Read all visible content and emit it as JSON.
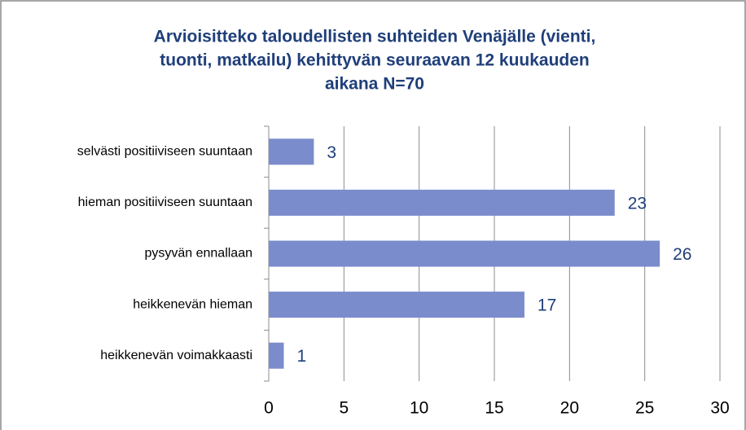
{
  "chart_data": {
    "type": "bar",
    "orientation": "horizontal",
    "title": [
      "Arvioisitteko taloudellisten suhteiden Venäjälle (vienti,",
      "tuonti, matkailu) kehittyvän seuraavan 12 kuukauden",
      "aikana N=70"
    ],
    "categories": [
      "selvästi positiiviseen suuntaan",
      "hieman positiiviseen suuntaan",
      "pysyvän ennallaan",
      "heikkenevän hieman",
      "heikkenevän voimakkaasti"
    ],
    "values": [
      3,
      23,
      26,
      17,
      1
    ],
    "color": "#7b8ccc",
    "xlim": [
      0,
      30
    ],
    "xticks": [
      0,
      5,
      10,
      15,
      20,
      25,
      30
    ],
    "grid": true
  }
}
